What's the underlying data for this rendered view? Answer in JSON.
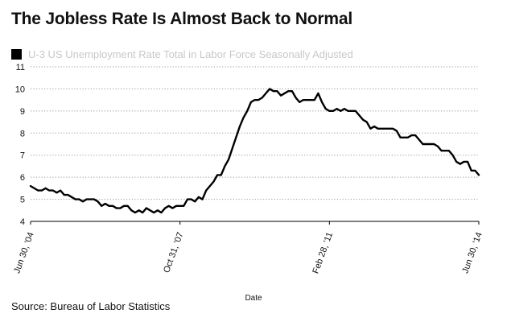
{
  "chart_data": {
    "type": "line",
    "title": "The Jobless Rate Is Almost Back to Normal",
    "legend": [
      "U-3 US Unemployment Rate Total in Labor Force Seasonally Adjusted"
    ],
    "xlabel": "Date",
    "ylabel": "",
    "ylim": [
      4,
      11
    ],
    "yticks": [
      4,
      5,
      6,
      7,
      8,
      9,
      10,
      11
    ],
    "x_range": [
      0,
      120
    ],
    "xticks": [
      {
        "index": 0,
        "label": "Jun 30, '04"
      },
      {
        "index": 40,
        "label": "Oct 31, '07"
      },
      {
        "index": 80,
        "label": "Feb 28, '11"
      },
      {
        "index": 120,
        "label": "Jun 30, '14"
      }
    ],
    "grid": "horizontal dotted",
    "series": [
      {
        "name": "U-3 US Unemployment Rate Total in Labor Force Seasonally Adjusted",
        "x_start": "Jun 2004",
        "frequency": "monthly",
        "values": [
          5.6,
          5.5,
          5.4,
          5.4,
          5.5,
          5.4,
          5.4,
          5.3,
          5.4,
          5.2,
          5.2,
          5.1,
          5.0,
          5.0,
          4.9,
          5.0,
          5.0,
          5.0,
          4.9,
          4.7,
          4.8,
          4.7,
          4.7,
          4.6,
          4.6,
          4.7,
          4.7,
          4.5,
          4.4,
          4.5,
          4.4,
          4.6,
          4.5,
          4.4,
          4.5,
          4.4,
          4.6,
          4.7,
          4.6,
          4.7,
          4.7,
          4.7,
          5.0,
          5.0,
          4.9,
          5.1,
          5.0,
          5.4,
          5.6,
          5.8,
          6.1,
          6.1,
          6.5,
          6.8,
          7.3,
          7.8,
          8.3,
          8.7,
          9.0,
          9.4,
          9.5,
          9.5,
          9.6,
          9.8,
          10.0,
          9.9,
          9.9,
          9.7,
          9.8,
          9.9,
          9.9,
          9.6,
          9.4,
          9.5,
          9.5,
          9.5,
          9.5,
          9.8,
          9.4,
          9.1,
          9.0,
          9.0,
          9.1,
          9.0,
          9.1,
          9.0,
          9.0,
          9.0,
          8.8,
          8.6,
          8.5,
          8.2,
          8.3,
          8.2,
          8.2,
          8.2,
          8.2,
          8.2,
          8.1,
          7.8,
          7.8,
          7.8,
          7.9,
          7.9,
          7.7,
          7.5,
          7.5,
          7.5,
          7.5,
          7.4,
          7.2,
          7.2,
          7.2,
          7.0,
          6.7,
          6.6,
          6.7,
          6.7,
          6.3,
          6.3,
          6.1
        ]
      }
    ]
  },
  "source": "Source: Bureau of Labor Statistics",
  "colors": {
    "line": "#000000",
    "grid": "#9a9a9a",
    "axis": "#000000",
    "legend_text": "#c8c8c8"
  }
}
